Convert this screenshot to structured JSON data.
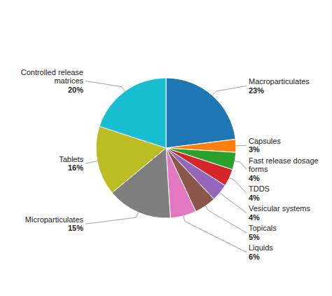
{
  "chart_data": {
    "type": "pie",
    "categories": [
      "Macroparticulates",
      "Capsules",
      "Fast release dosage\nforms",
      "TDDS",
      "Vesicular systems",
      "Topicals",
      "Liquids",
      "Microparticulates",
      "Tablets",
      "Controlled release\nmatrices"
    ],
    "values": [
      23,
      3,
      4,
      4,
      4,
      5,
      6,
      15,
      16,
      20
    ],
    "value_labels": [
      "23%",
      "3%",
      "4%",
      "4%",
      "4%",
      "5%",
      "6%",
      "15%",
      "16%",
      "20%"
    ],
    "data_labels": true
  }
}
